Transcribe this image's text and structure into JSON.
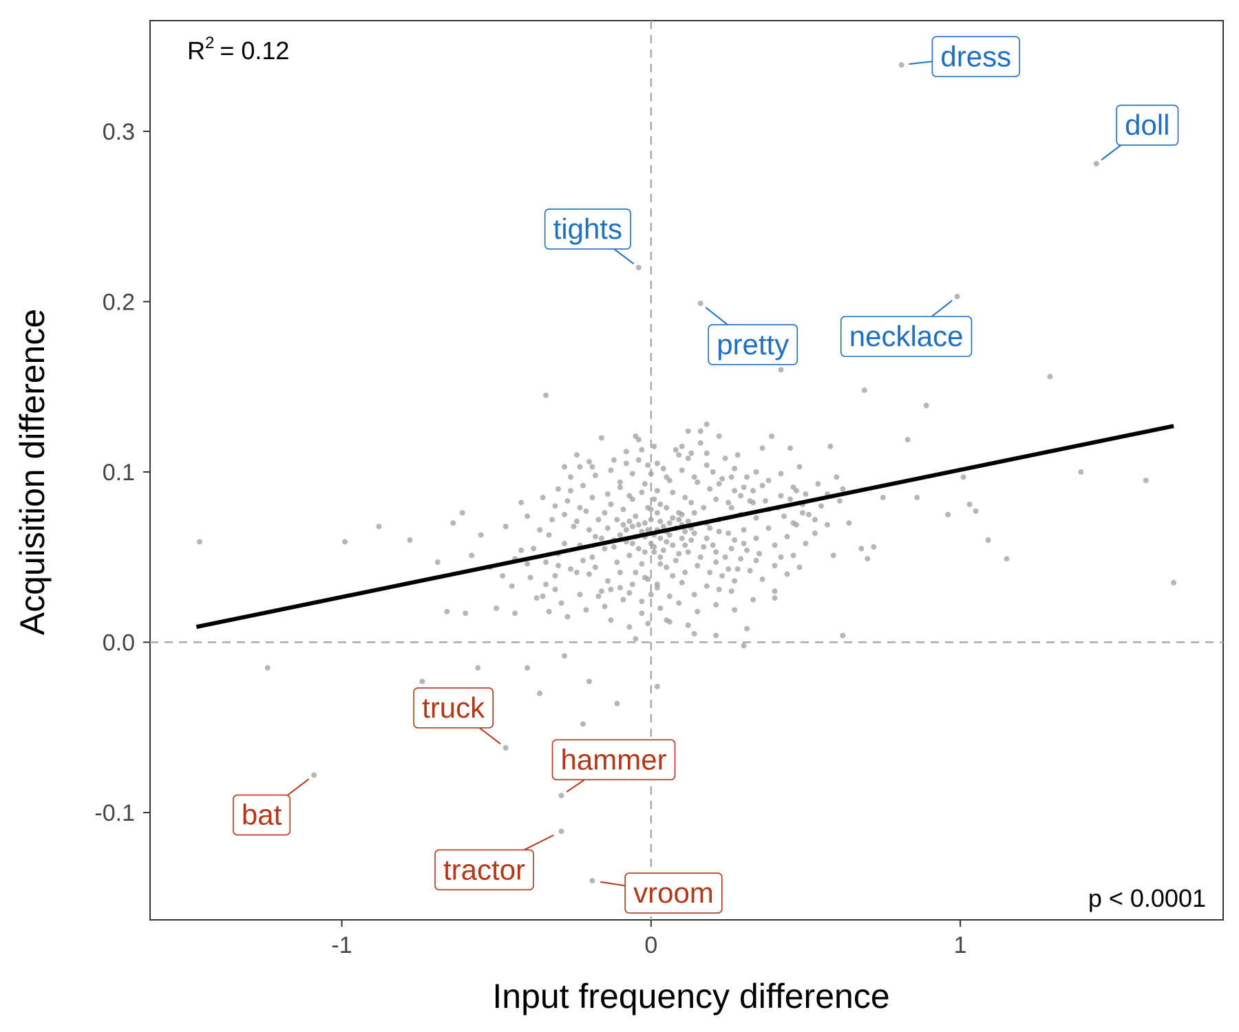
{
  "chart_data": {
    "type": "scatter",
    "xlabel": "Input frequency difference",
    "ylabel": "Acquisition difference",
    "xlim": [
      -1.62,
      1.85
    ],
    "ylim": [
      -0.163,
      0.365
    ],
    "xticks": [
      -1,
      0,
      1
    ],
    "xtick_labels": [
      "-1",
      "0",
      "1"
    ],
    "yticks": [
      -0.1,
      0.0,
      0.1,
      0.2,
      0.3
    ],
    "ytick_labels": [
      "-0.1",
      "0.0",
      "0.1",
      "0.2",
      "0.3"
    ],
    "grid": false,
    "reference_lines": {
      "x": 0,
      "y": 0
    },
    "r_squared": {
      "label": "R",
      "superscript": "2",
      "value": "= 0.12"
    },
    "p_value": "p < 0.0001",
    "fit_line": {
      "x": [
        -1.47,
        1.69
      ],
      "y": [
        0.009,
        0.127
      ]
    },
    "colors": {
      "points": "#9e9e9e",
      "fit": "#000000",
      "female": "#1f6fc4",
      "male": "#b5371a",
      "reference": "#aaaaaa"
    },
    "labeled_points": [
      {
        "word": "dress",
        "x": 0.81,
        "y": 0.339,
        "group": "female"
      },
      {
        "word": "doll",
        "x": 1.44,
        "y": 0.281,
        "group": "female"
      },
      {
        "word": "tights",
        "x": -0.04,
        "y": 0.22,
        "group": "female"
      },
      {
        "word": "pretty",
        "x": 0.16,
        "y": 0.199,
        "group": "female"
      },
      {
        "word": "necklace",
        "x": 0.99,
        "y": 0.203,
        "group": "female"
      },
      {
        "word": "truck",
        "x": -0.47,
        "y": -0.062,
        "group": "male"
      },
      {
        "word": "hammer",
        "x": -0.29,
        "y": -0.09,
        "group": "male"
      },
      {
        "word": "bat",
        "x": -1.09,
        "y": -0.078,
        "group": "male"
      },
      {
        "word": "tractor",
        "x": -0.29,
        "y": -0.111,
        "group": "male"
      },
      {
        "word": "vroom",
        "x": -0.19,
        "y": -0.14,
        "group": "male"
      }
    ],
    "points": [
      [
        -1.46,
        0.059
      ],
      [
        -0.99,
        0.059
      ],
      [
        -0.88,
        0.068
      ],
      [
        -0.78,
        0.06
      ],
      [
        -0.69,
        0.047
      ],
      [
        -0.61,
        0.076
      ],
      [
        -0.55,
        0.063
      ],
      [
        -0.58,
        0.051
      ],
      [
        -0.64,
        0.07
      ],
      [
        -0.66,
        0.018
      ],
      [
        -0.6,
        0.017
      ],
      [
        -0.5,
        0.02
      ],
      [
        -0.47,
        0.068
      ],
      [
        -0.42,
        0.054
      ],
      [
        -0.42,
        0.082
      ],
      [
        -0.4,
        0.046
      ],
      [
        -0.37,
        0.026
      ],
      [
        -0.44,
        0.017
      ],
      [
        -0.34,
        0.034
      ],
      [
        -0.31,
        0.031
      ],
      [
        -0.3,
        0.045
      ],
      [
        -0.29,
        0.023
      ],
      [
        -0.34,
        0.145
      ],
      [
        -0.26,
        0.089
      ],
      [
        -0.23,
        0.103
      ],
      [
        -0.19,
        0.103
      ],
      [
        -0.16,
        0.12
      ],
      [
        -0.13,
        0.101
      ],
      [
        -0.1,
        0.094
      ],
      [
        -0.06,
        0.084
      ],
      [
        -0.05,
        0.121
      ],
      [
        -0.03,
        0.113
      ],
      [
        -0.01,
        0.104
      ],
      [
        0.01,
        0.115
      ],
      [
        0.02,
        0.105
      ],
      [
        0.05,
        0.097
      ],
      [
        0.09,
        0.11
      ],
      [
        0.12,
        0.108
      ],
      [
        0.16,
        0.117
      ],
      [
        0.18,
        0.128
      ],
      [
        0.22,
        0.121
      ],
      [
        0.27,
        0.102
      ],
      [
        0.32,
        0.083
      ],
      [
        0.36,
        0.114
      ],
      [
        0.39,
        0.121
      ],
      [
        0.45,
        0.114
      ],
      [
        0.48,
        0.103
      ],
      [
        0.55,
        0.08
      ],
      [
        0.58,
        0.115
      ],
      [
        0.62,
        0.09
      ],
      [
        0.64,
        0.07
      ],
      [
        0.68,
        0.055
      ],
      [
        0.7,
        0.049
      ],
      [
        0.72,
        0.056
      ],
      [
        0.75,
        0.085
      ],
      [
        0.86,
        0.085
      ],
      [
        0.89,
        0.139
      ],
      [
        0.69,
        0.148
      ],
      [
        0.83,
        0.119
      ],
      [
        1.01,
        0.097
      ],
      [
        1.03,
        0.081
      ],
      [
        1.05,
        0.077
      ],
      [
        1.09,
        0.06
      ],
      [
        1.15,
        0.049
      ],
      [
        0.96,
        0.075
      ],
      [
        1.29,
        0.156
      ],
      [
        1.39,
        0.1
      ],
      [
        1.6,
        0.095
      ],
      [
        1.69,
        0.035
      ],
      [
        0.59,
        0.051
      ],
      [
        0.42,
        0.05
      ],
      [
        0.35,
        0.052
      ],
      [
        0.46,
        0.07
      ],
      [
        0.33,
        0.082
      ],
      [
        0.25,
        0.064
      ],
      [
        0.21,
        0.053
      ],
      [
        0.29,
        0.075
      ],
      [
        0.19,
        0.041
      ],
      [
        0.26,
        0.03
      ],
      [
        0.11,
        0.041
      ],
      [
        0.12,
        0.01
      ],
      [
        0.14,
        0.005
      ],
      [
        0.21,
        0.004
      ],
      [
        0.3,
        -0.002
      ],
      [
        0.02,
        -0.026
      ],
      [
        -0.11,
        -0.036
      ],
      [
        -0.22,
        -0.048
      ],
      [
        -0.36,
        -0.03
      ],
      [
        -0.4,
        -0.015
      ],
      [
        -0.56,
        -0.015
      ],
      [
        -1.24,
        -0.015
      ],
      [
        -0.74,
        -0.023
      ],
      [
        -0.28,
        -0.008
      ],
      [
        -0.2,
        -0.023
      ],
      [
        -0.05,
        0.002
      ],
      [
        0.42,
        0.16
      ],
      [
        0.62,
        0.004
      ],
      [
        0.31,
        0.008
      ],
      [
        0.05,
        0.044
      ],
      [
        0.06,
        0.012
      ],
      [
        0.02,
        0.034
      ],
      [
        -0.03,
        0.024
      ],
      [
        -0.1,
        0.032
      ],
      [
        -0.16,
        0.03
      ],
      [
        -0.2,
        0.04
      ],
      [
        -0.24,
        0.041
      ],
      [
        -0.28,
        0.058
      ],
      [
        -0.33,
        0.063
      ],
      [
        -0.38,
        0.055
      ],
      [
        -0.12,
        0.06
      ],
      [
        -0.08,
        0.066
      ],
      [
        -0.02,
        0.07
      ],
      [
        0.03,
        0.071
      ],
      [
        0.07,
        0.073
      ],
      [
        0.1,
        0.069
      ],
      [
        0.14,
        0.076
      ],
      [
        0.18,
        0.07
      ],
      [
        0.22,
        0.072
      ],
      [
        0.26,
        0.079
      ],
      [
        0.3,
        0.066
      ],
      [
        0.34,
        0.061
      ],
      [
        0.38,
        0.067
      ],
      [
        0.4,
        0.057
      ],
      [
        0.44,
        0.062
      ],
      [
        0.47,
        0.089
      ],
      [
        0.51,
        0.075
      ],
      [
        0.53,
        0.064
      ],
      [
        0.49,
        0.081
      ],
      [
        0.42,
        0.086
      ],
      [
        0.36,
        0.092
      ],
      [
        0.31,
        0.097
      ],
      [
        0.27,
        0.089
      ],
      [
        0.23,
        0.096
      ],
      [
        0.19,
        0.09
      ],
      [
        0.15,
        0.094
      ],
      [
        0.11,
        0.085
      ],
      [
        0.07,
        0.088
      ],
      [
        0.03,
        0.081
      ],
      [
        -0.01,
        0.079
      ],
      [
        -0.05,
        0.074
      ],
      [
        -0.09,
        0.078
      ],
      [
        -0.13,
        0.081
      ],
      [
        -0.17,
        0.072
      ],
      [
        -0.21,
        0.077
      ],
      [
        -0.25,
        0.068
      ],
      [
        -0.23,
        0.057
      ],
      [
        -0.19,
        0.05
      ],
      [
        -0.15,
        0.055
      ],
      [
        -0.11,
        0.047
      ],
      [
        -0.07,
        0.051
      ],
      [
        -0.03,
        0.046
      ],
      [
        0.01,
        0.053
      ],
      [
        0.05,
        0.059
      ],
      [
        0.09,
        0.052
      ],
      [
        0.13,
        0.06
      ],
      [
        0.17,
        0.056
      ],
      [
        0.21,
        0.047
      ],
      [
        0.25,
        0.043
      ],
      [
        0.29,
        0.049
      ],
      [
        0.32,
        0.042
      ],
      [
        0.36,
        0.037
      ],
      [
        0.27,
        0.036
      ],
      [
        0.22,
        0.031
      ],
      [
        0.18,
        0.033
      ],
      [
        0.14,
        0.028
      ],
      [
        0.1,
        0.035
      ],
      [
        0.06,
        0.027
      ],
      [
        0.02,
        0.032
      ],
      [
        -0.02,
        0.038
      ],
      [
        -0.06,
        0.034
      ],
      [
        -0.1,
        0.041
      ],
      [
        -0.14,
        0.036
      ],
      [
        -0.18,
        0.044
      ],
      [
        -0.22,
        0.048
      ],
      [
        -0.26,
        0.043
      ],
      [
        -0.3,
        0.052
      ],
      [
        -0.34,
        0.047
      ],
      [
        -0.18,
        0.062
      ],
      [
        -0.14,
        0.067
      ],
      [
        -0.1,
        0.063
      ],
      [
        -0.06,
        0.058
      ],
      [
        -0.02,
        0.062
      ],
      [
        0.02,
        0.066
      ],
      [
        0.06,
        0.063
      ],
      [
        0.1,
        0.061
      ],
      [
        0.14,
        0.064
      ],
      [
        0.18,
        0.061
      ],
      [
        0.22,
        0.065
      ],
      [
        0.26,
        0.055
      ],
      [
        0.3,
        0.058
      ],
      [
        0.34,
        0.073
      ],
      [
        0.38,
        0.078
      ],
      [
        0.43,
        0.074
      ],
      [
        0.47,
        0.069
      ],
      [
        0.5,
        0.058
      ],
      [
        0.46,
        0.051
      ],
      [
        0.4,
        0.045
      ],
      [
        0.34,
        0.048
      ],
      [
        0.28,
        0.043
      ],
      [
        0.24,
        0.05
      ],
      [
        0.2,
        0.057
      ],
      [
        0.16,
        0.05
      ],
      [
        0.12,
        0.053
      ],
      [
        0.08,
        0.048
      ],
      [
        0.04,
        0.054
      ],
      [
        0.0,
        0.058
      ],
      [
        -0.04,
        0.055
      ],
      [
        -0.08,
        0.059
      ],
      [
        -0.12,
        0.056
      ],
      [
        -0.16,
        0.061
      ],
      [
        -0.2,
        0.066
      ],
      [
        -0.24,
        0.071
      ],
      [
        -0.28,
        0.075
      ],
      [
        -0.32,
        0.072
      ],
      [
        -0.36,
        0.066
      ],
      [
        -0.4,
        0.074
      ],
      [
        -0.44,
        0.049
      ],
      [
        -0.48,
        0.039
      ],
      [
        -0.52,
        0.044
      ],
      [
        -0.45,
        0.033
      ],
      [
        -0.39,
        0.038
      ],
      [
        -0.33,
        0.018
      ],
      [
        -0.27,
        0.015
      ],
      [
        -0.21,
        0.019
      ],
      [
        -0.15,
        0.021
      ],
      [
        -0.09,
        0.025
      ],
      [
        -0.03,
        0.017
      ],
      [
        0.03,
        0.02
      ],
      [
        0.09,
        0.023
      ],
      [
        0.15,
        0.018
      ],
      [
        0.21,
        0.022
      ],
      [
        0.27,
        0.019
      ],
      [
        0.33,
        0.025
      ],
      [
        -0.26,
        0.097
      ],
      [
        -0.22,
        0.092
      ],
      [
        -0.18,
        0.098
      ],
      [
        -0.14,
        0.087
      ],
      [
        -0.1,
        0.091
      ],
      [
        -0.06,
        0.099
      ],
      [
        -0.02,
        0.093
      ],
      [
        0.02,
        0.089
      ],
      [
        0.06,
        0.095
      ],
      [
        0.1,
        0.101
      ],
      [
        0.14,
        0.097
      ],
      [
        0.18,
        0.104
      ],
      [
        0.22,
        0.093
      ],
      [
        0.26,
        0.097
      ],
      [
        0.3,
        0.091
      ],
      [
        0.34,
        0.1
      ],
      [
        0.38,
        0.095
      ],
      [
        0.42,
        0.099
      ],
      [
        0.46,
        0.091
      ],
      [
        0.5,
        0.087
      ],
      [
        0.54,
        0.093
      ],
      [
        0.57,
        0.087
      ],
      [
        0.6,
        0.097
      ],
      [
        -0.3,
        0.09
      ],
      [
        -0.35,
        0.085
      ],
      [
        -0.31,
        0.08
      ],
      [
        -0.27,
        0.083
      ],
      [
        -0.23,
        0.079
      ],
      [
        -0.19,
        0.085
      ],
      [
        -0.15,
        0.076
      ],
      [
        -0.11,
        0.072
      ],
      [
        -0.07,
        0.086
      ],
      [
        -0.03,
        0.088
      ],
      [
        0.01,
        0.084
      ],
      [
        0.05,
        0.079
      ],
      [
        0.09,
        0.076
      ],
      [
        0.13,
        0.082
      ],
      [
        0.17,
        0.079
      ],
      [
        0.21,
        0.084
      ],
      [
        0.25,
        0.082
      ],
      [
        0.29,
        0.086
      ],
      [
        0.33,
        0.089
      ],
      [
        0.37,
        0.083
      ],
      [
        0.41,
        0.079
      ],
      [
        0.45,
        0.084
      ],
      [
        0.49,
        0.076
      ],
      [
        0.53,
        0.072
      ],
      [
        0.57,
        0.069
      ],
      [
        0.61,
        0.083
      ],
      [
        -0.05,
        0.041
      ],
      [
        -0.01,
        0.037
      ],
      [
        0.03,
        0.046
      ],
      [
        0.07,
        0.039
      ],
      [
        0.11,
        0.057
      ],
      [
        0.15,
        0.045
      ],
      [
        0.19,
        0.067
      ],
      [
        0.23,
        0.039
      ],
      [
        0.27,
        0.06
      ],
      [
        0.31,
        0.054
      ],
      [
        -0.35,
        0.027
      ],
      [
        -0.31,
        0.039
      ],
      [
        -0.23,
        0.028
      ],
      [
        -0.17,
        0.027
      ],
      [
        -0.13,
        0.031
      ],
      [
        -0.07,
        0.029
      ],
      [
        0.0,
        0.028
      ],
      [
        0.05,
        0.013
      ],
      [
        -0.01,
        0.011
      ],
      [
        -0.07,
        0.009
      ],
      [
        -0.13,
        0.013
      ],
      [
        0.4,
        0.03
      ],
      [
        0.44,
        0.04
      ],
      [
        0.48,
        0.044
      ],
      [
        0.4,
        0.026
      ],
      [
        -0.12,
        0.107
      ],
      [
        -0.08,
        0.112
      ],
      [
        -0.04,
        0.107
      ],
      [
        0.0,
        0.099
      ],
      [
        0.04,
        0.102
      ],
      [
        0.08,
        0.113
      ],
      [
        0.13,
        0.111
      ],
      [
        0.18,
        0.111
      ],
      [
        0.24,
        0.108
      ],
      [
        0.28,
        0.11
      ],
      [
        0.2,
        0.1
      ],
      [
        -0.28,
        0.103
      ],
      [
        -0.24,
        0.11
      ],
      [
        -0.2,
        0.106
      ],
      [
        -0.04,
        0.119
      ],
      [
        0.12,
        0.124
      ],
      [
        0.16,
        0.124
      ],
      [
        0.1,
        0.115
      ],
      [
        -0.08,
        0.105
      ],
      [
        0.0,
        0.072
      ],
      [
        -0.01,
        0.066
      ],
      [
        0.01,
        0.063
      ],
      [
        0.02,
        0.076
      ],
      [
        0.04,
        0.068
      ],
      [
        0.03,
        0.061
      ],
      [
        -0.03,
        0.065
      ],
      [
        -0.04,
        0.069
      ],
      [
        0.05,
        0.065
      ],
      [
        0.06,
        0.07
      ],
      [
        0.08,
        0.067
      ],
      [
        0.0,
        0.078
      ],
      [
        -0.06,
        0.068
      ],
      [
        0.09,
        0.072
      ],
      [
        0.01,
        0.056
      ],
      [
        -0.02,
        0.053
      ],
      [
        0.03,
        0.05
      ],
      [
        0.07,
        0.057
      ],
      [
        0.11,
        0.065
      ],
      [
        0.12,
        0.071
      ],
      [
        0.13,
        0.067
      ],
      [
        0.1,
        0.075
      ],
      [
        -0.05,
        0.062
      ],
      [
        -0.07,
        0.071
      ],
      [
        -0.09,
        0.069
      ]
    ]
  }
}
